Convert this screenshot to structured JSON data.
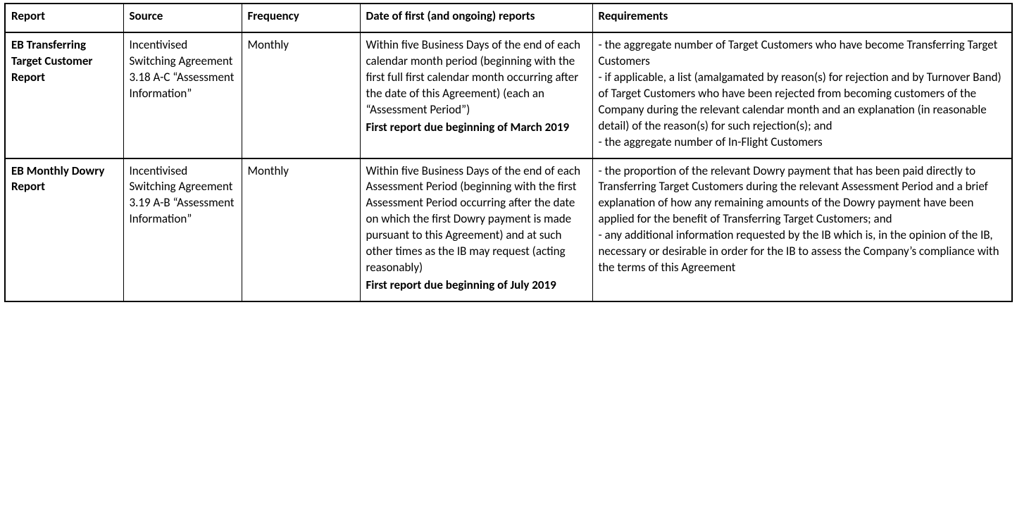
{
  "table": {
    "columns": [
      "Report",
      "Source",
      "Frequency",
      "Date of first (and ongoing) reports",
      "Requirements"
    ],
    "rows": [
      {
        "report": "EB Transferring Target Customer Report",
        "source": "Incentivised Switching Agreement 3.18 A-C “Assessment Information”",
        "frequency": "Monthly",
        "date_main": "Within five Business Days of the end of each calendar month period (beginning with the first full first calendar month occurring after the date of this Agreement) (each an “Assessment Period”)",
        "date_first": "First report due beginning of March 2019",
        "requirements": [
          "- the aggregate number of Target Customers who have become Transferring Target Customers",
          "- if applicable, a list (amalgamated by reason(s) for rejection and by Turnover Band) of Target Customers who have been rejected from becoming customers of the Company during the relevant calendar month and an explanation (in reasonable detail) of the reason(s) for such rejection(s); and",
          "- the aggregate number of In-Flight Customers"
        ]
      },
      {
        "report": "EB Monthly Dowry Report",
        "source": "Incentivised Switching Agreement 3.19 A-B “Assessment Information”",
        "frequency": "Monthly",
        "date_main": "Within five Business Days of the end of each Assessment Period (beginning with the first Assessment Period occurring after the date on which the first Dowry payment is made pursuant to this Agreement) and at such other times as the IB may request (acting reasonably)",
        "date_first": "First report due beginning of July 2019",
        "requirements": [
          "- the proportion of the relevant Dowry payment that has been paid directly to Transferring Target Customers during the relevant Assessment Period and a brief explanation of how any remaining amounts of the Dowry payment have been applied for the benefit of Transferring Target Customers; and",
          "- any additional information requested by the IB which is, in the opinion of the IB, necessary or desirable in order for the IB to assess the Company’s compliance with the terms of this Agreement"
        ]
      }
    ]
  }
}
